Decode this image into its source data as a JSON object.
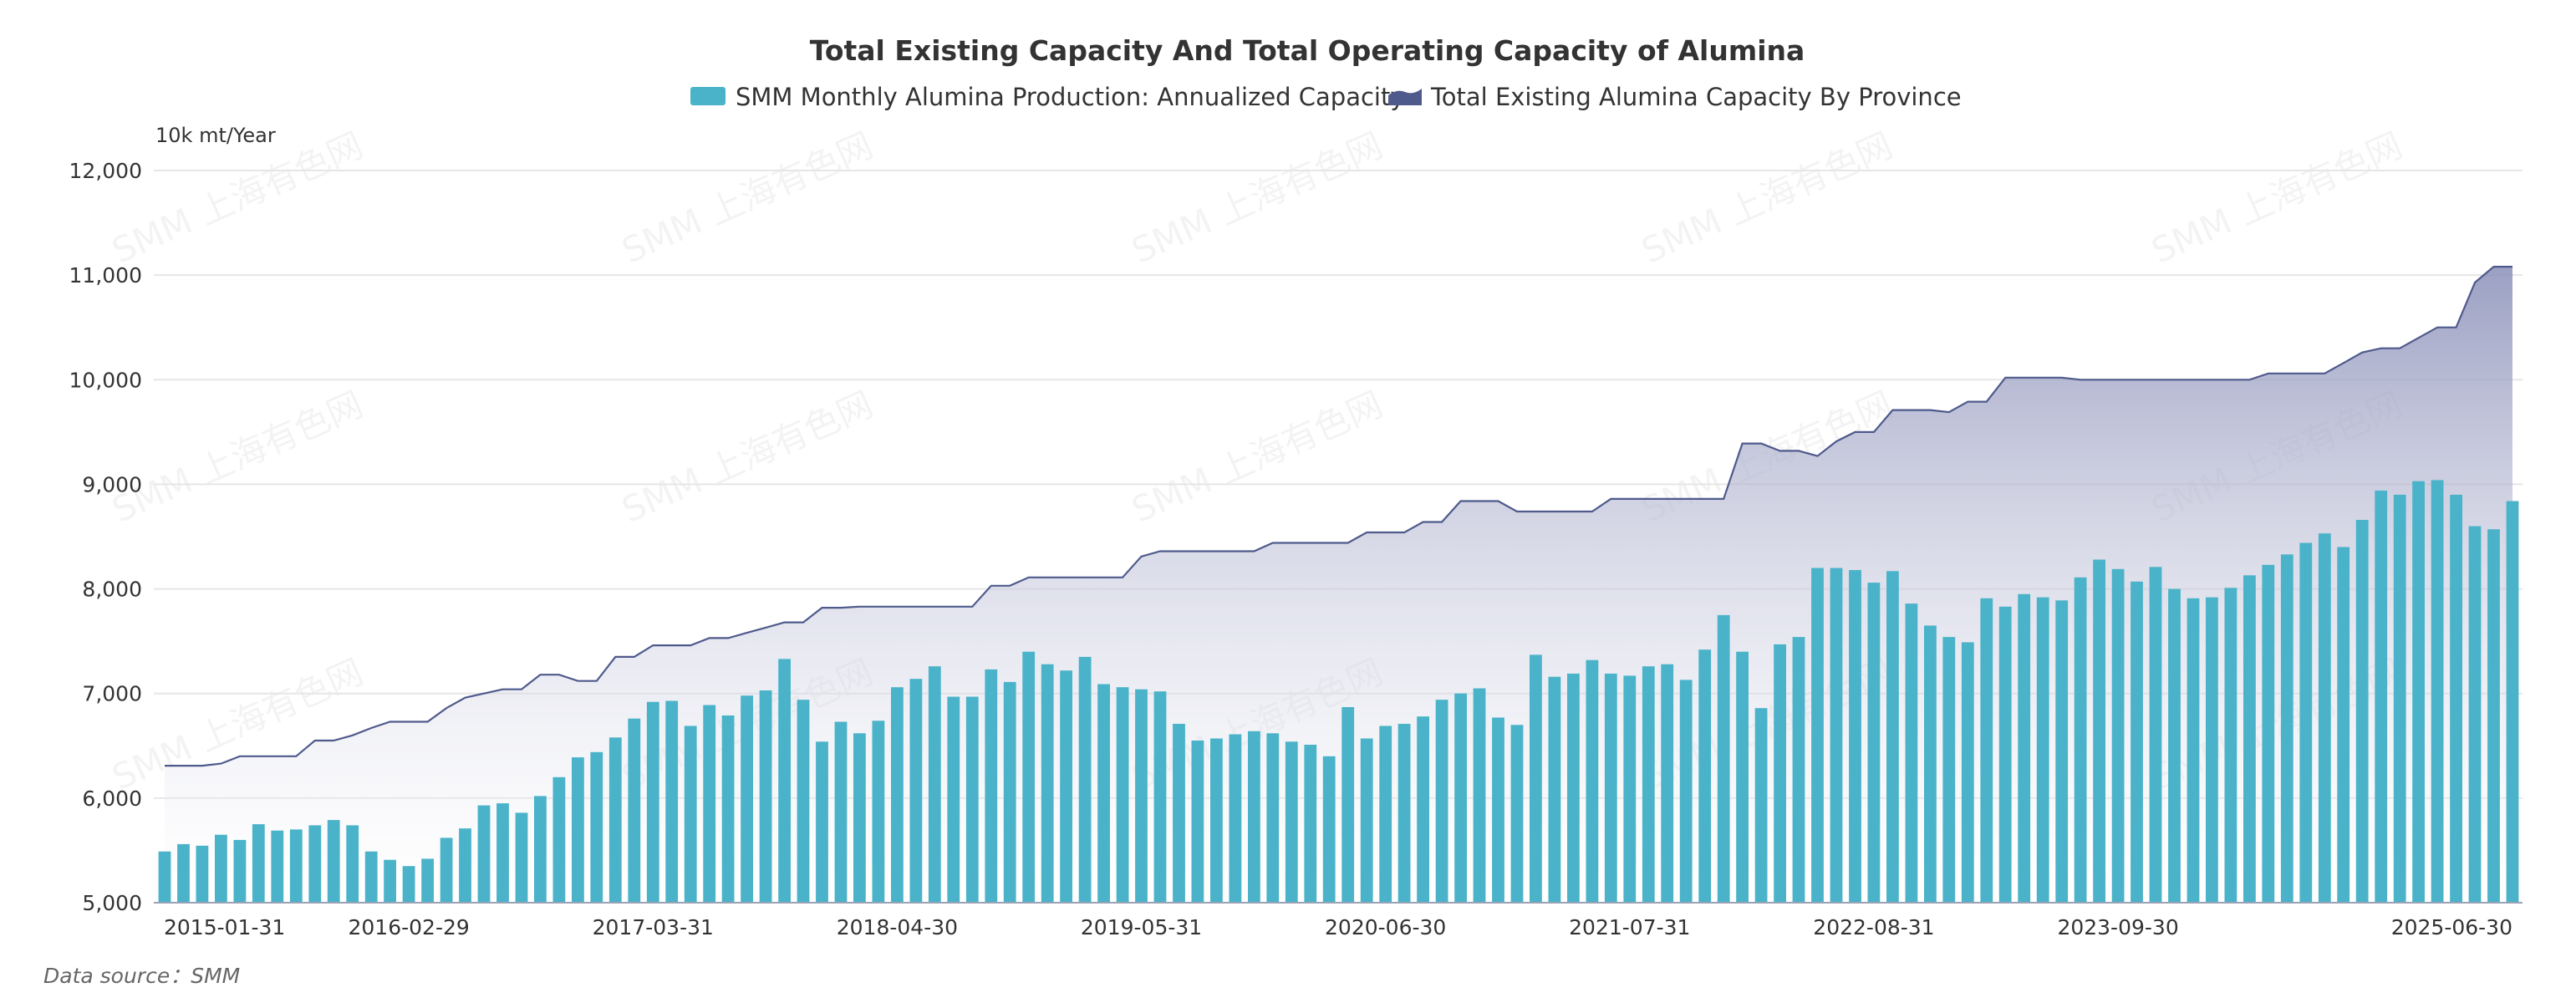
{
  "chart_data": {
    "type": "bar",
    "title": "Total Existing Capacity And Total Operating Capacity of Alumina",
    "ylabel": "10k mt/Year",
    "ylim": [
      5000,
      12000
    ],
    "yticks": [
      "5,000",
      "6,000",
      "7,000",
      "8,000",
      "9,000",
      "10,000",
      "11,000",
      "12,000"
    ],
    "ytick_values": [
      5000,
      6000,
      7000,
      8000,
      9000,
      10000,
      11000,
      12000
    ],
    "xtick_labels": [
      "2015-01-31",
      "2016-02-29",
      "2017-03-31",
      "2018-04-30",
      "2019-05-31",
      "2020-06-30",
      "2021-07-31",
      "2022-08-31",
      "2023-09-30",
      "2025-06-30"
    ],
    "grid": true,
    "legend_position": "top-center",
    "x_start": "2015-01",
    "x_end": "2025-07",
    "series": [
      {
        "name": "SMM Monthly Alumina Production: Annualized Capacity",
        "type": "bar",
        "color": "#4ab3c9",
        "values": [
          5490,
          5560,
          5545,
          5650,
          5600,
          5750,
          5690,
          5700,
          5740,
          5790,
          5740,
          5490,
          5410,
          5350,
          5420,
          5620,
          5710,
          5930,
          5950,
          5860,
          6020,
          6200,
          6390,
          6440,
          6580,
          6760,
          6920,
          6930,
          6690,
          6890,
          6790,
          6980,
          7030,
          7330,
          6940,
          6540,
          6730,
          6620,
          6740,
          7060,
          7140,
          7260,
          6970,
          6970,
          7230,
          7110,
          7400,
          7280,
          7220,
          7350,
          7090,
          7060,
          7040,
          7020,
          6710,
          6550,
          6570,
          6610,
          6640,
          6620,
          6540,
          6510,
          6400,
          6870,
          6570,
          6690,
          6710,
          6780,
          6940,
          7000,
          7050,
          6770,
          6700,
          7370,
          7160,
          7190,
          7320,
          7190,
          7170,
          7260,
          7280,
          7130,
          7420,
          7750,
          7400,
          6860,
          7470,
          7540,
          8200,
          8200,
          8180,
          8060,
          8170,
          7860,
          7650,
          7540,
          7490,
          7910,
          7830,
          7950,
          7920,
          7890,
          8110,
          8280,
          8190,
          8070,
          8210,
          8000,
          7910,
          7920,
          8010,
          8130,
          8230,
          8330,
          8440,
          8530,
          8400,
          8660,
          8940,
          8900,
          9030,
          9040,
          8900,
          8600,
          8570,
          8840
        ]
      },
      {
        "name": "Total Existing Alumina Capacity By Province",
        "type": "area",
        "color": "#4f5a8c",
        "values": [
          6310,
          6310,
          6310,
          6330,
          6400,
          6400,
          6400,
          6400,
          6550,
          6550,
          6600,
          6670,
          6730,
          6730,
          6730,
          6860,
          6960,
          7000,
          7040,
          7040,
          7180,
          7180,
          7120,
          7120,
          7350,
          7350,
          7460,
          7460,
          7460,
          7530,
          7530,
          7580,
          7630,
          7680,
          7680,
          7820,
          7820,
          7830,
          7830,
          7830,
          7830,
          7830,
          7830,
          7830,
          8030,
          8030,
          8110,
          8110,
          8110,
          8110,
          8110,
          8110,
          8310,
          8360,
          8360,
          8360,
          8360,
          8360,
          8360,
          8440,
          8440,
          8440,
          8440,
          8440,
          8540,
          8540,
          8540,
          8640,
          8640,
          8840,
          8840,
          8840,
          8740,
          8740,
          8740,
          8740,
          8740,
          8860,
          8860,
          8860,
          8860,
          8860,
          8860,
          8860,
          9390,
          9390,
          9320,
          9320,
          9270,
          9410,
          9500,
          9500,
          9710,
          9710,
          9710,
          9690,
          9790,
          9790,
          10020,
          10020,
          10020,
          10020,
          10000,
          10000,
          10000,
          10000,
          10000,
          10000,
          10000,
          10000,
          10000,
          10000,
          10060,
          10060,
          10060,
          10060,
          10160,
          10260,
          10300,
          10300,
          10400,
          10500,
          10500,
          10930,
          11080,
          11080
        ]
      }
    ]
  },
  "source": "Data source：SMM",
  "watermark": "SMM 上海有色网"
}
